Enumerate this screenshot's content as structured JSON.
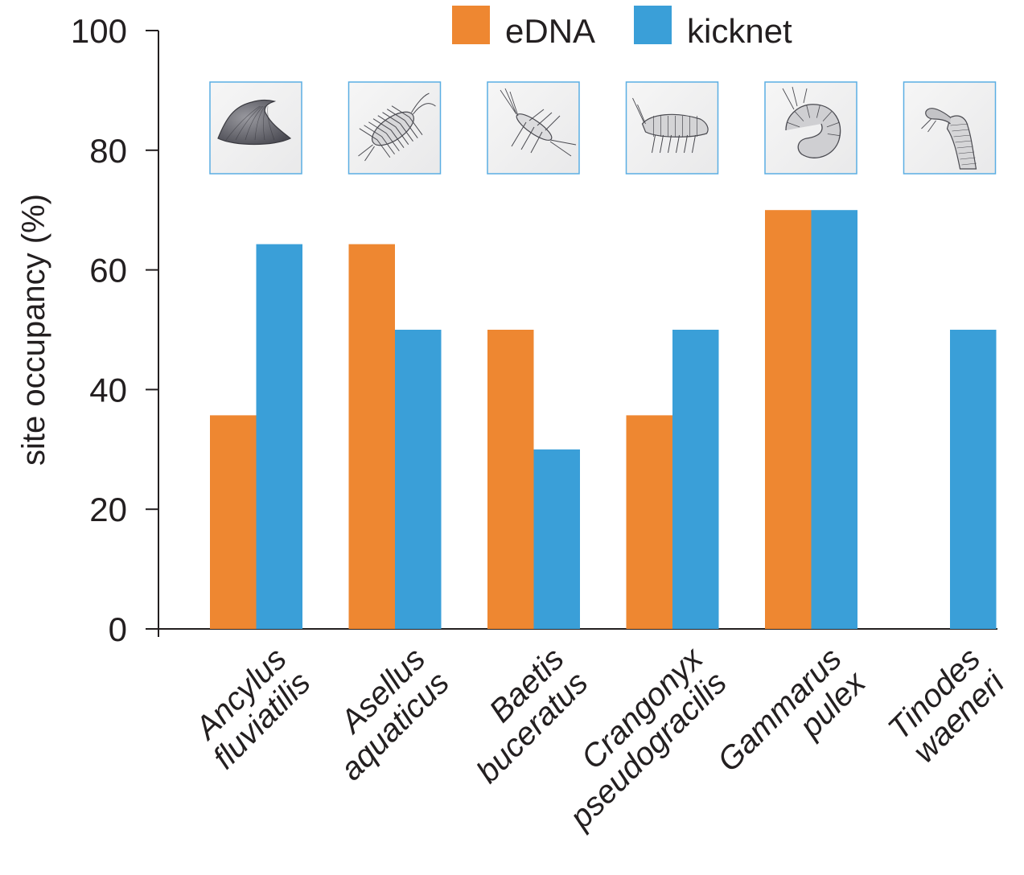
{
  "chart_data": {
    "type": "bar",
    "categories": [
      [
        "Ancylus",
        "fluviatilis"
      ],
      [
        "Asellus",
        "aquaticus"
      ],
      [
        "Baetis",
        "buceratus"
      ],
      [
        "Crangonyx",
        "pseudogracilis"
      ],
      [
        "Gammarus",
        "pulex"
      ],
      [
        "Tinodes",
        "waeneri"
      ]
    ],
    "series": [
      {
        "name": "eDNA",
        "color": "#ee8731",
        "values": [
          35.7,
          64.3,
          50,
          35.7,
          70,
          0
        ]
      },
      {
        "name": "kicknet",
        "color": "#3a9fd8",
        "values": [
          64.3,
          50,
          30,
          50,
          70,
          50
        ]
      }
    ],
    "ylabel": "site occupancy  (%)",
    "xlabel": "",
    "ylim": [
      0,
      100
    ],
    "yticks": [
      "0",
      "20",
      "40",
      "60",
      "80",
      "100"
    ],
    "legend_position": "top-center",
    "category_images": [
      "limpet-shell-sketch",
      "isopod-sketch",
      "mayfly-larva-sketch",
      "amphipod-sketch",
      "curled-shrimp-sketch",
      "caddis-larva-sketch"
    ],
    "image_frame_color": "#5aaee3",
    "grid": false
  }
}
